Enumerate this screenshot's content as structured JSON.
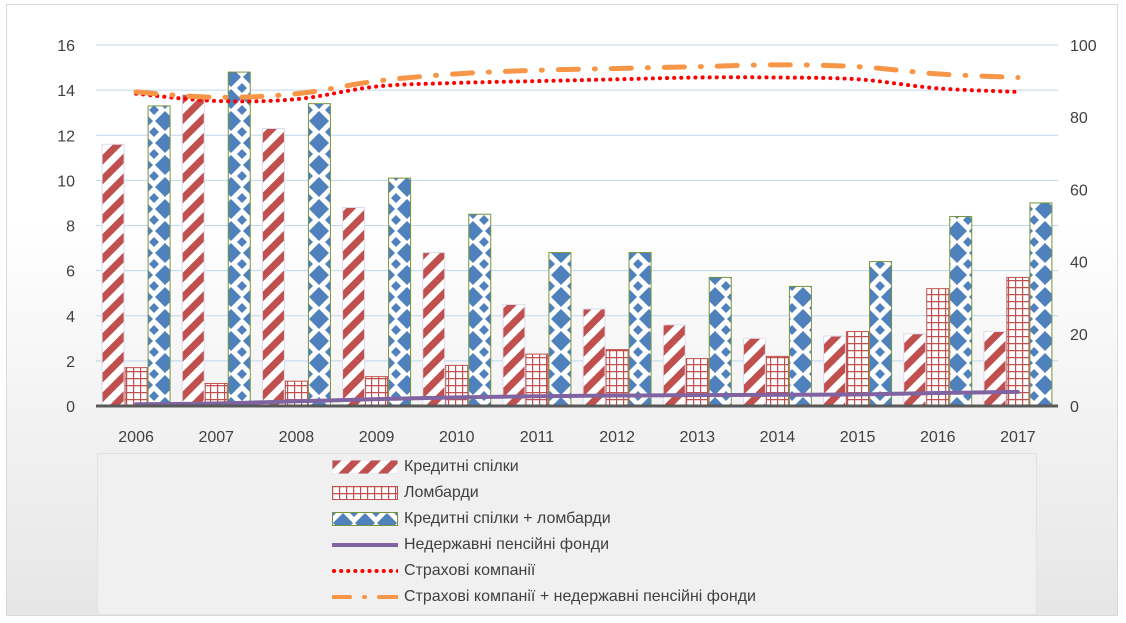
{
  "chart_data": {
    "type": "bar",
    "categories": [
      "2006",
      "2007",
      "2008",
      "2009",
      "2010",
      "2011",
      "2012",
      "2013",
      "2014",
      "2015",
      "2016",
      "2017"
    ],
    "ylim_left": [
      0,
      16
    ],
    "yticks_left": [
      "0",
      "2",
      "4",
      "6",
      "8",
      "10",
      "12",
      "14",
      "16"
    ],
    "ylim_right": [
      0,
      100
    ],
    "yticks_right": [
      "0",
      "20",
      "40",
      "60",
      "80",
      "100"
    ],
    "grid": true,
    "legend_position": "bottom",
    "series": [
      {
        "name": "Кредитні спілки",
        "type": "bar",
        "axis": "left",
        "color": "#c0504d",
        "pattern": "diagonal-stripes",
        "values": [
          11.6,
          13.8,
          12.3,
          8.8,
          6.8,
          4.5,
          4.3,
          3.6,
          3.0,
          3.1,
          3.2,
          3.3
        ]
      },
      {
        "name": "Ломбарди",
        "type": "bar",
        "axis": "left",
        "color": "#c0504d",
        "pattern": "grid",
        "values": [
          1.7,
          1.0,
          1.1,
          1.3,
          1.8,
          2.3,
          2.5,
          2.1,
          2.2,
          3.3,
          5.2,
          5.7
        ]
      },
      {
        "name": "Кредитні спілки + ломбарди",
        "type": "bar",
        "axis": "left",
        "color": "#4f81bd",
        "border": "#77933c",
        "pattern": "diamonds",
        "values": [
          13.3,
          14.8,
          13.4,
          10.1,
          8.5,
          6.8,
          6.8,
          5.7,
          5.3,
          6.4,
          8.4,
          9.0
        ]
      },
      {
        "name": "Недержавні пенсійні фонди",
        "type": "line",
        "axis": "right",
        "color": "#8064a2",
        "style": "solid",
        "values": [
          0.5,
          0.7,
          1.3,
          1.9,
          2.4,
          2.7,
          2.9,
          3.0,
          3.1,
          3.2,
          3.6,
          3.9
        ]
      },
      {
        "name": "Страхові компанії",
        "type": "line",
        "axis": "right",
        "color": "#ff0000",
        "style": "dotted",
        "values": [
          86.5,
          84.5,
          85.0,
          88.5,
          89.5,
          90.0,
          90.5,
          91.0,
          91.0,
          90.5,
          88.0,
          87.0
        ]
      },
      {
        "name": "Страхові компанії + недержавні пенсійні фонди",
        "type": "line",
        "axis": "right",
        "color": "#f79646",
        "style": "dash-dot",
        "values": [
          87.0,
          85.5,
          86.5,
          90.0,
          92.0,
          93.0,
          93.5,
          94.0,
          94.5,
          94.0,
          92.0,
          91.0
        ]
      }
    ]
  }
}
